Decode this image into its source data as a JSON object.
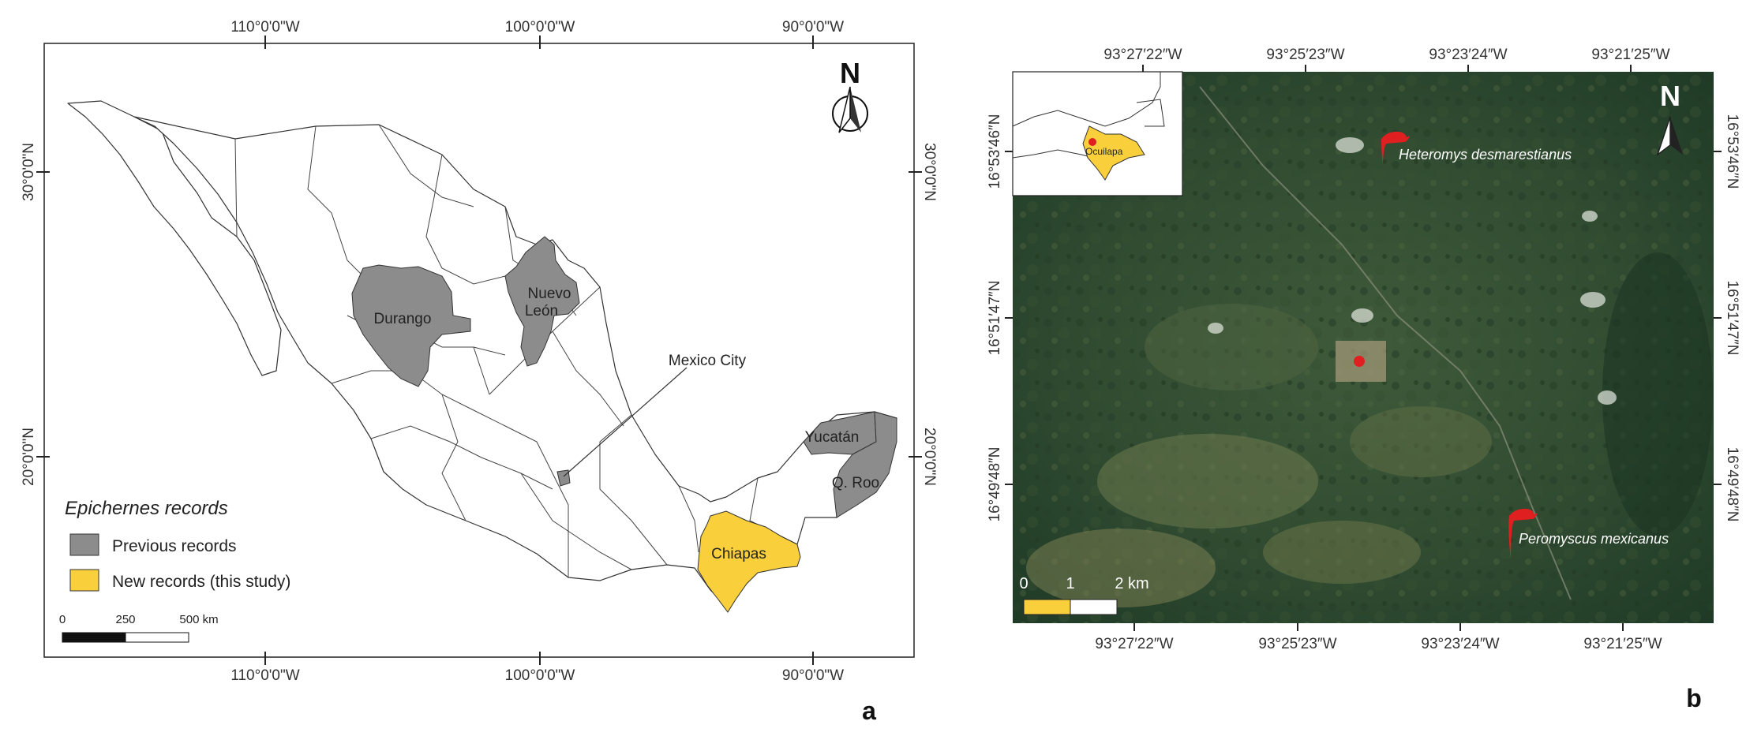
{
  "panel_a": {
    "letter": "a",
    "top_lon_labels": [
      "110°0'0\"W",
      "100°0'0\"W",
      "90°0'0\"W"
    ],
    "bottom_lon_labels": [
      "110°0'0\"W",
      "100°0'0\"W",
      "90°0'0\"W"
    ],
    "lat_labels": [
      "30°0'0\"N",
      "20°0'0\"N"
    ],
    "north": "N",
    "states": {
      "durango": "Durango",
      "nuevo_leon_1": "Nuevo",
      "nuevo_leon_2": "León",
      "yucatan": "Yucatán",
      "qroo": "Q. Roo",
      "chiapas": "Chiapas",
      "mexico_city": "Mexico City"
    },
    "legend": {
      "title": "Epichernes records",
      "items": [
        {
          "label": "Previous records",
          "color": "#8c8c8c"
        },
        {
          "label": "New records (this study)",
          "color": "#f9cf3c"
        }
      ]
    },
    "scale": {
      "ticks": [
        "0",
        "250",
        "500 km"
      ]
    },
    "colors": {
      "previous": "#8c8c8c",
      "new": "#f9cf3c"
    }
  },
  "panel_b": {
    "letter": "b",
    "top_lon_labels": [
      "93°27′22″W",
      "93°25′23″W",
      "93°23′24″W",
      "93°21′25″W"
    ],
    "bottom_lon_labels": [
      "93°27′22″W",
      "93°25′23″W",
      "93°23′24″W",
      "93°21′25″W"
    ],
    "lat_labels": [
      "16°53′46″N",
      "16°51′47″N",
      "16°49′48″N"
    ],
    "north": "N",
    "inset_label": "Ocuilapa",
    "species": [
      "Heteromys desmarestianus",
      "Peromyscus mexicanus"
    ],
    "scale": {
      "ticks": [
        "0",
        "1",
        "2 km"
      ]
    },
    "colors": {
      "marker": "#e02020",
      "scale": "#f9cf3c"
    }
  }
}
